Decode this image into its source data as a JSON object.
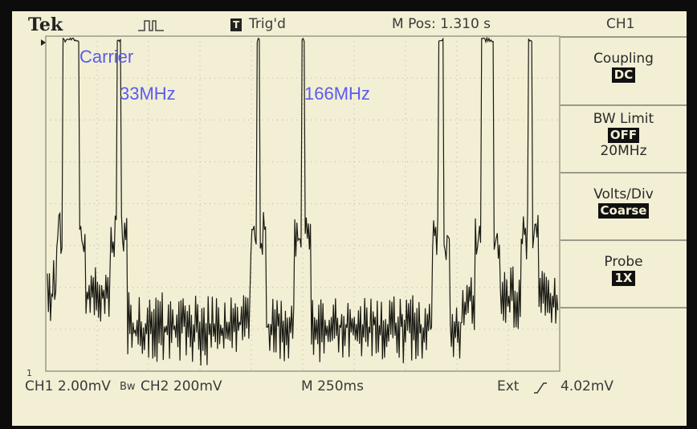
{
  "header": {
    "brand": "Tek",
    "trigger_icon": "T",
    "trigger_status": "Trig'd",
    "position": "M Pos: 1.310 s",
    "channel": "CH1"
  },
  "annotations": [
    "Carrier",
    "33MHz",
    "166MHz"
  ],
  "menu": [
    {
      "label": "Coupling",
      "value": "DC"
    },
    {
      "label": "BW Limit",
      "value": "OFF",
      "option": "20MHz"
    },
    {
      "label": "Volts/Div",
      "value": "Coarse"
    },
    {
      "label": "Probe",
      "value": "1X"
    }
  ],
  "footer": {
    "ch1": "CH1 2.00mV",
    "bw": "Bw",
    "ch2": "CH2 200mV",
    "timebase": "M 250ms",
    "trigger_source": "Ext",
    "trigger_level": "4.02mV"
  },
  "markers": {
    "channel": "1"
  }
}
